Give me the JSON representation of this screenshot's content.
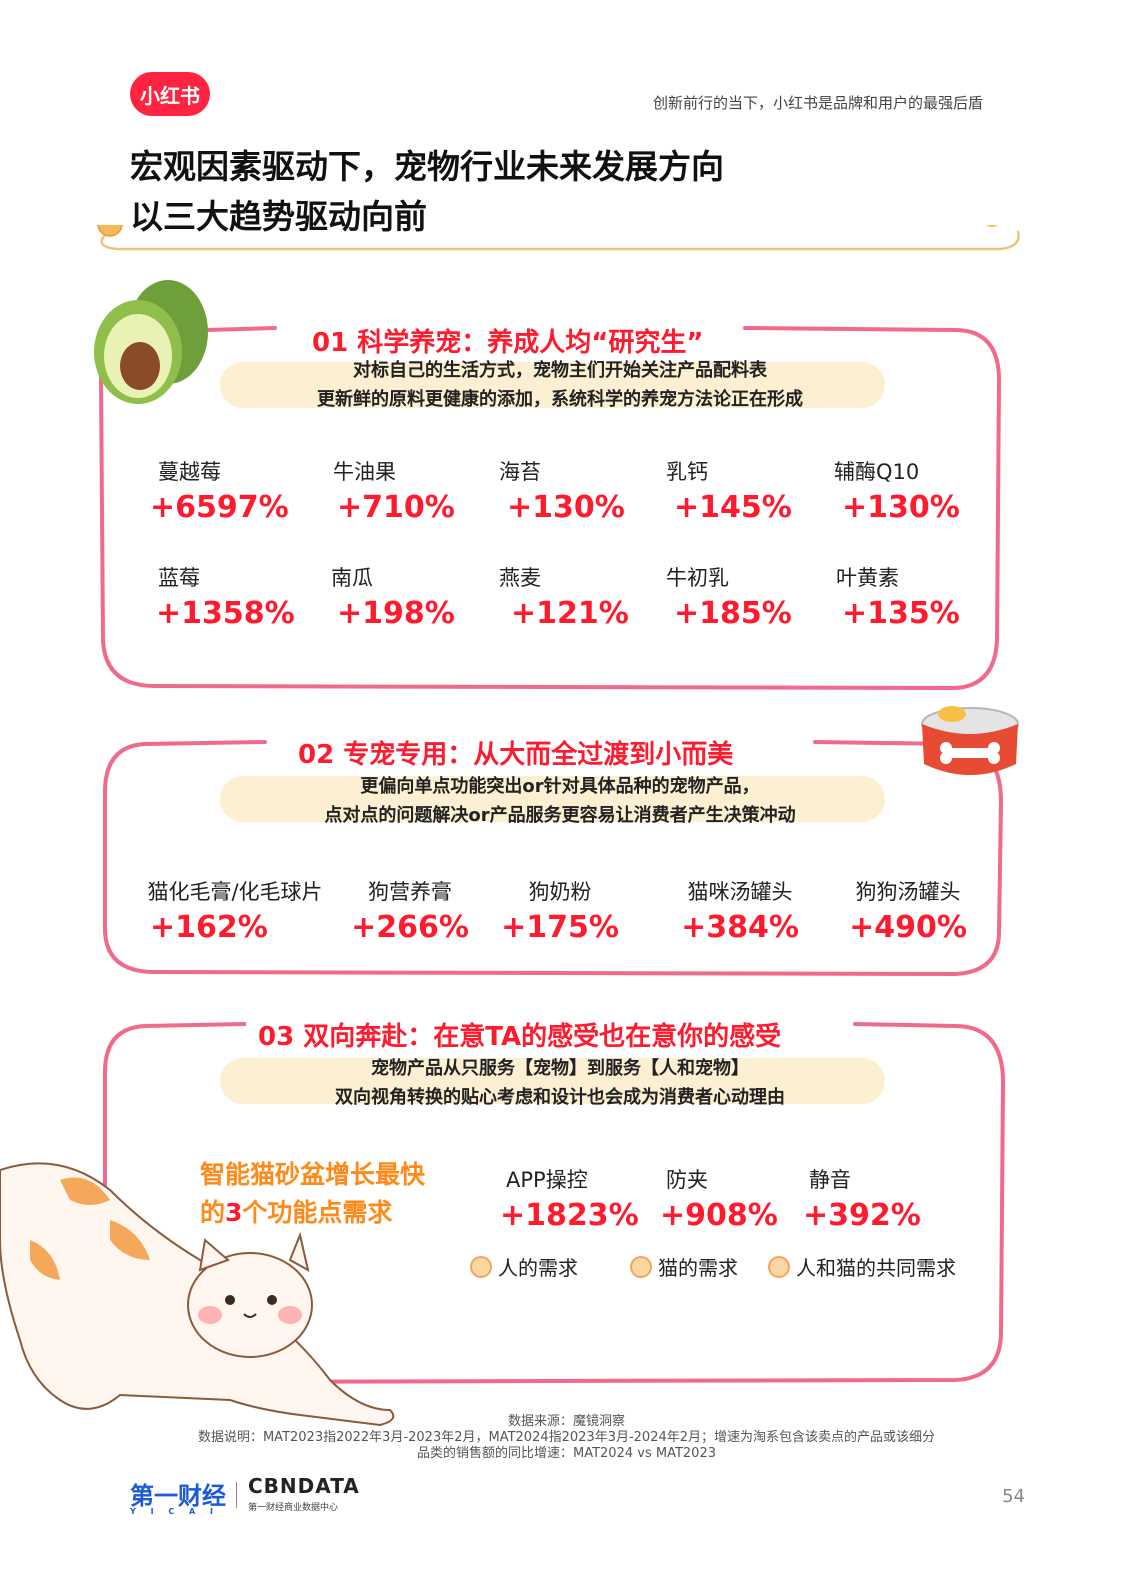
{
  "header": {
    "logo_text": "小红书",
    "tagline": "创新前行的当下，小红书是品牌和用户的最强后盾"
  },
  "title": {
    "line1": "宏观因素驱动下，宠物行业未来发展方向",
    "line2": "以三大趋势驱动向前"
  },
  "section1": {
    "title": "01 科学养宠：养成人均“研究生”",
    "sub1": "对标自己的生活方式，宠物主们开始关注产品配料表",
    "sub2": "更新鲜的原料更健康的添加，系统科学的养宠方法论正在形成",
    "items": [
      {
        "label": "蔓越莓",
        "value": "+6597%"
      },
      {
        "label": "牛油果",
        "value": "+710%"
      },
      {
        "label": "海苔",
        "value": "+130%"
      },
      {
        "label": "乳钙",
        "value": "+145%"
      },
      {
        "label": "辅酶Q10",
        "value": "+130%"
      },
      {
        "label": "蓝莓",
        "value": "+1358%"
      },
      {
        "label": "南瓜",
        "value": "+198%"
      },
      {
        "label": "燕麦",
        "value": "+121%"
      },
      {
        "label": "牛初乳",
        "value": "+185%"
      },
      {
        "label": "叶黄素",
        "value": "+135%"
      }
    ]
  },
  "section2": {
    "title": "02 专宠专用：从大而全过渡到小而美",
    "sub1": "更偏向单点功能突出or针对具体品种的宠物产品，",
    "sub2": "点对点的问题解决or产品服务更容易让消费者产生决策冲动",
    "items": [
      {
        "label": "猫化毛膏/化毛球片",
        "value": "+162%"
      },
      {
        "label": "狗营养膏",
        "value": "+266%"
      },
      {
        "label": "狗奶粉",
        "value": "+175%"
      },
      {
        "label": "猫咪汤罐头",
        "value": "+384%"
      },
      {
        "label": "狗狗汤罐头",
        "value": "+490%"
      }
    ]
  },
  "section3": {
    "title": "03 双向奔赴：在意TA的感受也在意你的感受",
    "sub1": "宠物产品从只服务【宠物】到服务【人和宠物】",
    "sub2": "双向视角转换的贴心考虑和设计也会成为消费者心动理由",
    "highlight_line1": "智能猫砂盆增长最快",
    "highlight_line2_pre": "的",
    "highlight_line2_num": "3",
    "highlight_line2_post": "个功能点需求",
    "items": [
      {
        "label": "APP操控",
        "value": "+1823%"
      },
      {
        "label": "防夹",
        "value": "+908%"
      },
      {
        "label": "静音",
        "value": "+392%"
      }
    ],
    "tags": [
      "人的需求",
      "猫的需求",
      "人和猫的共同需求"
    ]
  },
  "footer": {
    "source": "数据来源：魔镜洞察",
    "note1": "数据说明：MAT2023指2022年3月-2023年2月，MAT2024指2023年3月-2024年2月；增速为淘系包含该卖点的产品或该细分",
    "note2": "品类的销售额的同比增速：MAT2024 vs MAT2023",
    "brand1": "第一财经",
    "brand1_sub": "Y I C A I",
    "brand2": "CBNDATA",
    "brand2_sub": "第一财经商业数据中心",
    "page_number": "54"
  },
  "colors": {
    "accent_red": "#ff1a2e",
    "frame_pink": "#f06a8c",
    "highlight_cream": "#fdf0d2",
    "orange": "#ff8a1a"
  }
}
